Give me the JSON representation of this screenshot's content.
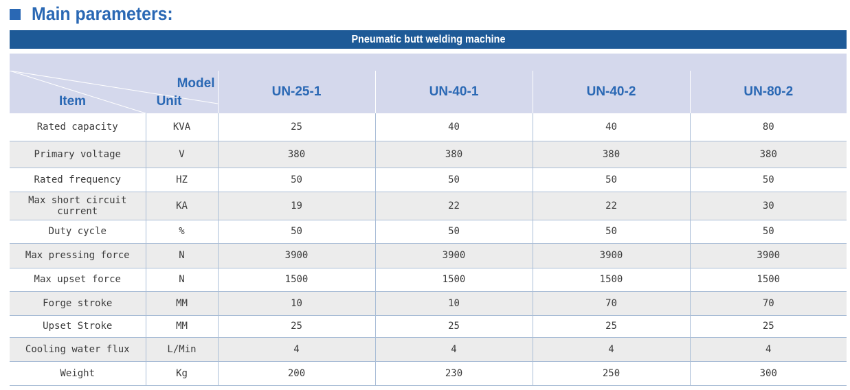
{
  "heading": "Main parameters:",
  "table_title": "Pneumatic butt welding machine",
  "header": {
    "model_label": "Model",
    "item_label": "Item",
    "unit_label": "Unit",
    "models": [
      "UN-25-1",
      "UN-40-1",
      "UN-40-2",
      "UN-80-2"
    ]
  },
  "rows": [
    {
      "item": "Rated capacity",
      "unit": "KVA",
      "values": [
        "25",
        "40",
        "40",
        "80"
      ]
    },
    {
      "item": "Primary voltage",
      "unit": "V",
      "values": [
        "380",
        "380",
        "380",
        "380"
      ]
    },
    {
      "item": "Rated frequency",
      "unit": "HZ",
      "values": [
        "50",
        "50",
        "50",
        "50"
      ]
    },
    {
      "item": "Max short circuit current",
      "unit": "KA",
      "values": [
        "19",
        "22",
        "22",
        "30"
      ]
    },
    {
      "item": "Duty cycle",
      "unit": "%",
      "values": [
        "50",
        "50",
        "50",
        "50"
      ]
    },
    {
      "item": "Max pressing force",
      "unit": "N",
      "values": [
        "3900",
        "3900",
        "3900",
        "3900"
      ]
    },
    {
      "item": "Max upset force",
      "unit": "N",
      "values": [
        "1500",
        "1500",
        "1500",
        "1500"
      ]
    },
    {
      "item": "Forge stroke",
      "unit": "MM",
      "values": [
        "10",
        "10",
        "70",
        "70"
      ]
    },
    {
      "item": "Upset Stroke",
      "unit": "MM",
      "values": [
        "25",
        "25",
        "25",
        "25"
      ]
    },
    {
      "item": "Cooling water flux",
      "unit": "L/Min",
      "values": [
        "4",
        "4",
        "4",
        "4"
      ]
    },
    {
      "item": "Weight",
      "unit": "Kg",
      "values": [
        "200",
        "230",
        "250",
        "300"
      ]
    }
  ],
  "colors": {
    "accent": "#2a68b4",
    "banner": "#1e5a97",
    "header_bg": "#d4d8ec",
    "stripe": "#ececec"
  }
}
